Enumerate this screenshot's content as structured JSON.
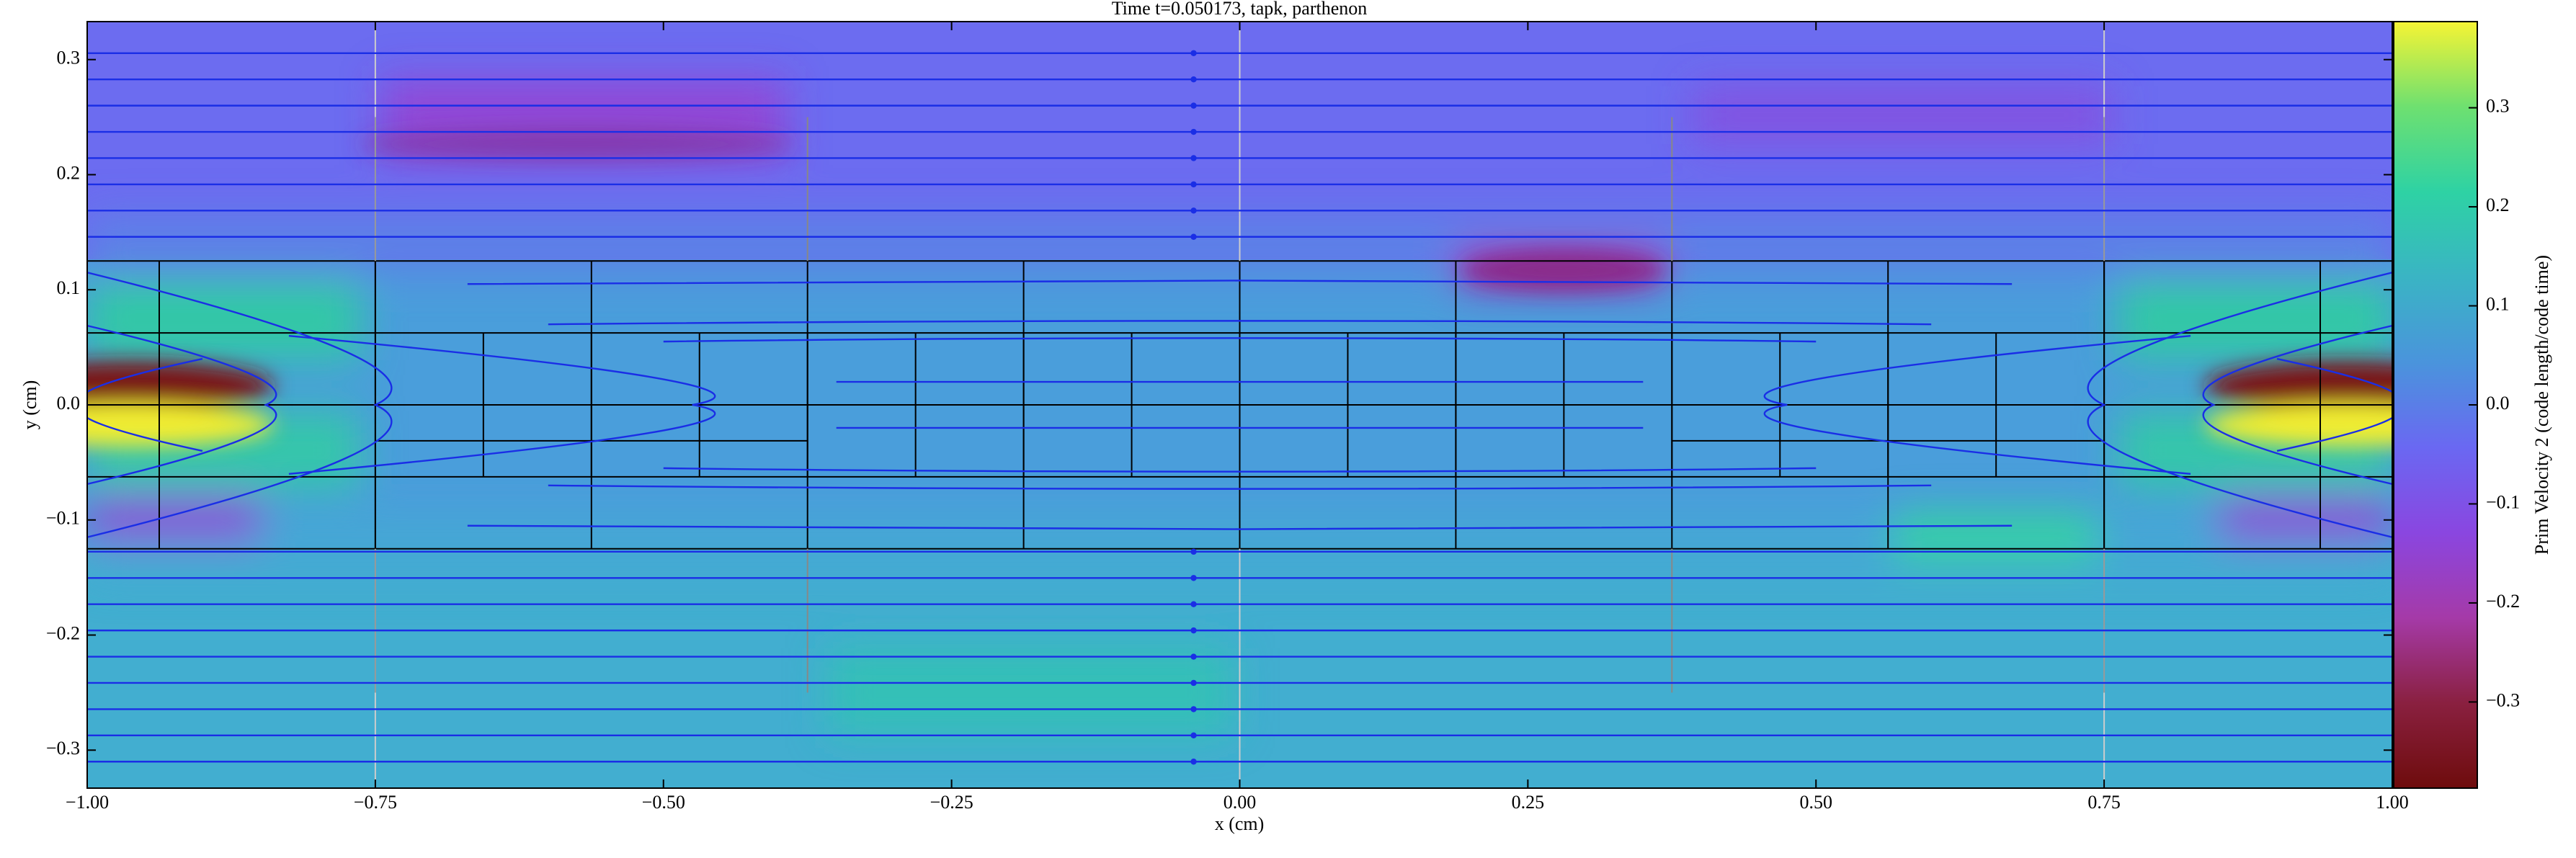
{
  "chart_data": {
    "type": "field",
    "title": "Time t=0.050173, tapk, parthenon",
    "x_label": "x  (cm)",
    "y_label": "y  (cm)",
    "xlim": [
      -1,
      1
    ],
    "ylim": [
      -0.333,
      0.333
    ],
    "xticks": [
      {
        "value": -1,
        "label": "−1.00"
      },
      {
        "value": -0.75,
        "label": "−0.75"
      },
      {
        "value": -0.5,
        "label": "−0.50"
      },
      {
        "value": -0.25,
        "label": "−0.25"
      },
      {
        "value": 0,
        "label": "0.00"
      },
      {
        "value": 0.25,
        "label": "0.25"
      },
      {
        "value": 0.5,
        "label": "0.50"
      },
      {
        "value": 0.75,
        "label": "0.75"
      },
      {
        "value": 1,
        "label": "1.00"
      }
    ],
    "yticks": [
      {
        "value": -0.3,
        "label": "−0.3"
      },
      {
        "value": -0.2,
        "label": "−0.2"
      },
      {
        "value": -0.1,
        "label": "−0.1"
      },
      {
        "value": 0,
        "label": "0.0"
      },
      0.1,
      0.2,
      0.3
    ],
    "colorbar": {
      "label": "Prim Velocity 2  (code length/code time)",
      "lim": [
        -0.387,
        0.387
      ],
      "ticks": [
        {
          "value": -0.3,
          "label": "−0.3"
        },
        {
          "value": -0.2,
          "label": "−0.2"
        },
        {
          "value": -0.1,
          "label": "−0.1"
        },
        {
          "value": 0,
          "label": "0.0"
        },
        0.1,
        0.2,
        0.3
      ],
      "colors": [
        "#6e0c0c",
        "#8a2040",
        "#a53aa8",
        "#8a46e0",
        "#6a68f2",
        "#4a94dc",
        "#3ab4c4",
        "#2ed2a4",
        "#6ee070",
        "#f6f434"
      ]
    }
  }
}
